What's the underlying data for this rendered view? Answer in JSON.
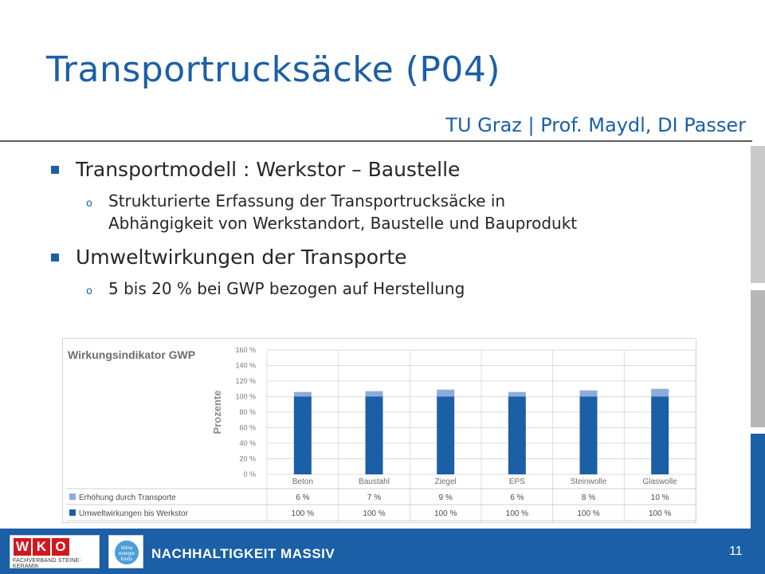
{
  "header": {
    "title": "Transportrucksäcke (P04)",
    "subtitle": "TU Graz | Prof. Maydl, DI Passer"
  },
  "bullets": [
    {
      "text": "Transportmodell : Werkstor – Baustelle",
      "sub": [
        "Strukturierte Erfassung der Transportrucksäcke in",
        "Abhängigkeit von Werkstandort, Baustelle und Bauprodukt"
      ]
    },
    {
      "text": "Umweltwirkungen der Transporte",
      "sub": [
        "5 bis 20 % bei GWP bezogen auf Herstellung"
      ]
    }
  ],
  "sub_marker": "o",
  "chart_data": {
    "type": "bar",
    "stacked": true,
    "title": "Wirkungsindikator GWP",
    "ylabel": "Prozente",
    "ylim": [
      0,
      160
    ],
    "yticks": [
      "0 %",
      "20 %",
      "40 %",
      "60 %",
      "80 %",
      "100 %",
      "120 %",
      "140 %",
      "160 %"
    ],
    "categories": [
      "Beton",
      "Baustahl",
      "Ziegel",
      "EPS",
      "Steinwolle",
      "Glaswolle"
    ],
    "series": [
      {
        "name": "Umweltwirkungen bis Werkstor",
        "values": [
          100,
          100,
          100,
          100,
          100,
          100
        ],
        "labels": [
          "100 %",
          "100 %",
          "100 %",
          "100 %",
          "100 %",
          "100 %"
        ],
        "color": "#1b5fa7"
      },
      {
        "name": "Erhöhung durch Transporte",
        "values": [
          6,
          7,
          9,
          6,
          8,
          10
        ],
        "labels": [
          "6 %",
          "7 %",
          "9 %",
          "6 %",
          "8 %",
          "10 %"
        ],
        "color": "#8faadc"
      }
    ],
    "grid": true,
    "legend": "table-below"
  },
  "footer": {
    "text": "NACHHALTIGKEIT MASSIV",
    "page_number": "11",
    "wko_letters": [
      "W",
      "K",
      "O"
    ],
    "wko_sub": "FACHVERBAND STEINE-KERAMIK",
    "klima_text": "klima energie fonds"
  },
  "colors": {
    "accent": "#1b5fa7",
    "series_light": "#8faadc",
    "logo_red": "#d0191f"
  }
}
